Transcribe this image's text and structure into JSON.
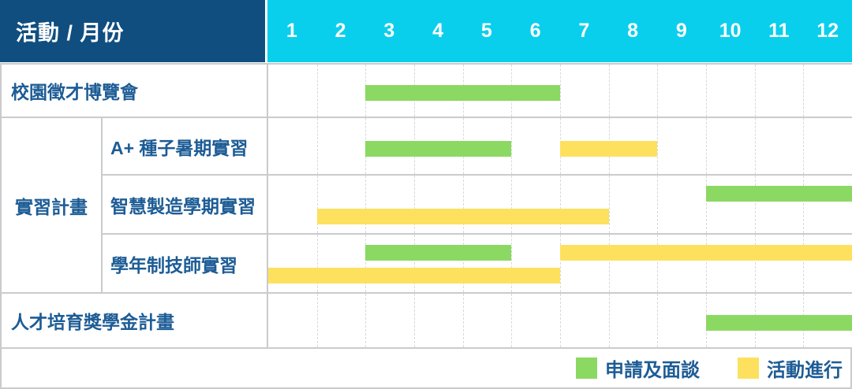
{
  "header": {
    "corner_label": "活動 / 月份",
    "months": [
      "1",
      "2",
      "3",
      "4",
      "5",
      "6",
      "7",
      "8",
      "9",
      "10",
      "11",
      "12"
    ]
  },
  "legend": {
    "items": [
      {
        "key": "apply",
        "label": "申請及面談"
      },
      {
        "key": "activity",
        "label": "活動進行"
      }
    ]
  },
  "colors": {
    "navy": "#104e80",
    "cyan": "#09cfec",
    "apply": "#8bd963",
    "activity": "#fde15e",
    "text": "#1d5c95",
    "grid": "#c9cbcd",
    "dash": "#d7d9da"
  },
  "chart_data": {
    "type": "gantt",
    "x_unit": "month",
    "x_range": [
      1,
      12
    ],
    "bar_kinds": {
      "apply": "申請及面談",
      "activity": "活動進行"
    },
    "rows": [
      {
        "label": "校園徵才博覽會",
        "group": null,
        "bars": [
          {
            "kind": "apply",
            "start_month": 3,
            "end_month": 6,
            "line": 0
          }
        ]
      },
      {
        "label": "A+ 種子暑期實習",
        "group": "實習計畫",
        "bars": [
          {
            "kind": "apply",
            "start_month": 3,
            "end_month": 5,
            "line": 0
          },
          {
            "kind": "activity",
            "start_month": 7,
            "end_month": 8,
            "line": 0
          }
        ]
      },
      {
        "label": "智慧製造學期實習",
        "group": "實習計畫",
        "bars": [
          {
            "kind": "apply",
            "start_month": 10,
            "end_month": 12,
            "line": 0
          },
          {
            "kind": "activity",
            "start_month": 2,
            "end_month": 7,
            "line": 1
          }
        ]
      },
      {
        "label": "學年制技師實習",
        "group": "實習計畫",
        "bars": [
          {
            "kind": "apply",
            "start_month": 3,
            "end_month": 5,
            "line": 0
          },
          {
            "kind": "activity",
            "start_month": 7,
            "end_month": 12,
            "line": 0
          },
          {
            "kind": "activity",
            "start_month": 1,
            "end_month": 6,
            "line": 1
          }
        ]
      },
      {
        "label": "人才培育獎學金計畫",
        "group": null,
        "bars": [
          {
            "kind": "apply",
            "start_month": 10,
            "end_month": 12,
            "line": 0
          }
        ]
      }
    ]
  }
}
